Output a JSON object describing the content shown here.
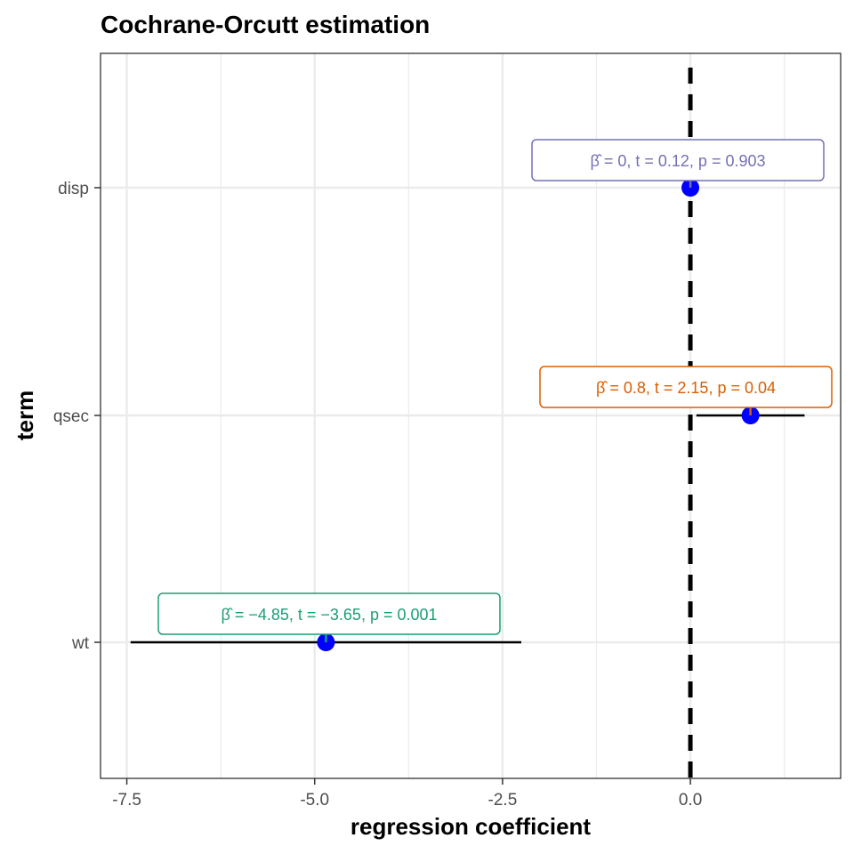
{
  "chart_data": {
    "type": "coefficient-plot",
    "title": "Cochrane-Orcutt estimation",
    "xlabel": "regression coefficient",
    "ylabel": "term",
    "xlim": [
      -7.85,
      2.0
    ],
    "x_ticks": [
      -7.5,
      -5.0,
      -2.5,
      0.0
    ],
    "x_tick_labels": [
      "-7.5",
      "-5.0",
      "-2.5",
      "0.0"
    ],
    "categories": [
      "disp",
      "qsec",
      "wt"
    ],
    "reference_line": 0.0,
    "grid": true,
    "points": [
      {
        "term": "disp",
        "estimate": 0.0,
        "ci_low": -0.01,
        "ci_high": 0.01,
        "label": "β̂ = 0, t = 0.12, p = 0.903",
        "label_color": "#7570B3"
      },
      {
        "term": "qsec",
        "estimate": 0.8,
        "ci_low": 0.08,
        "ci_high": 1.52,
        "label": "β̂ = 0.8, t = 2.15, p = 0.04",
        "label_color": "#D95F02"
      },
      {
        "term": "wt",
        "estimate": -4.85,
        "ci_low": -7.45,
        "ci_high": -2.25,
        "label": "β̂ = −4.85, t = −3.65, p = 0.001",
        "label_color": "#1B9E77"
      }
    ],
    "point_color": "#0000FF"
  }
}
